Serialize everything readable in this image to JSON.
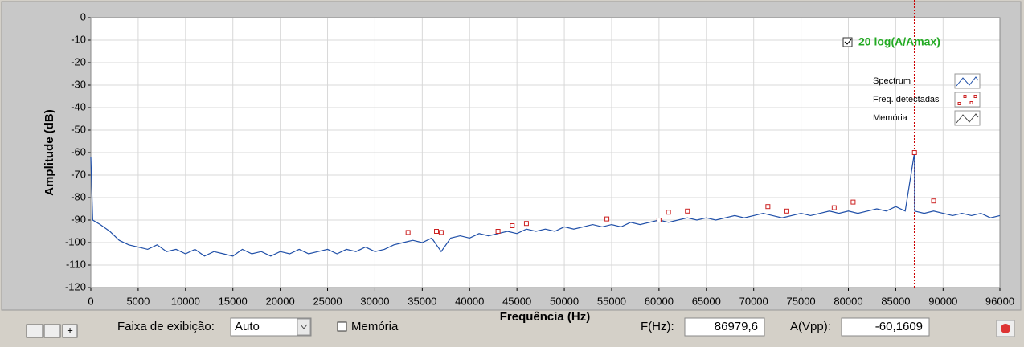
{
  "chart_data": {
    "type": "line",
    "y_label": "Amplitude (dB)",
    "x_label": "Frequência (Hz)",
    "toggle_label": "20 log(A/Amax)",
    "xlim": [
      0,
      96000
    ],
    "ylim": [
      -120,
      0
    ],
    "xticks": [
      0,
      5000,
      10000,
      15000,
      20000,
      25000,
      30000,
      35000,
      40000,
      45000,
      50000,
      55000,
      60000,
      65000,
      70000,
      75000,
      80000,
      85000,
      90000,
      96000
    ],
    "yticks": [
      0,
      -10,
      -20,
      -30,
      -40,
      -50,
      -60,
      -70,
      -80,
      -90,
      -100,
      -110,
      -120
    ],
    "grid": true,
    "series": [
      {
        "name": "Spectrum",
        "color": "#1f4fa8",
        "kind": "line",
        "x": [
          0,
          200,
          1000,
          2000,
          3000,
          4000,
          5000,
          6000,
          7000,
          8000,
          9000,
          10000,
          11000,
          12000,
          13000,
          14000,
          15000,
          16000,
          17000,
          18000,
          19000,
          20000,
          21000,
          22000,
          23000,
          24000,
          25000,
          26000,
          27000,
          28000,
          29000,
          30000,
          31000,
          32000,
          33000,
          34000,
          35000,
          36000,
          37000,
          38000,
          39000,
          40000,
          41000,
          42000,
          43000,
          44000,
          45000,
          46000,
          47000,
          48000,
          49000,
          50000,
          51000,
          52000,
          53000,
          54000,
          55000,
          56000,
          57000,
          58000,
          59000,
          60000,
          61000,
          62000,
          63000,
          64000,
          65000,
          66000,
          67000,
          68000,
          69000,
          70000,
          71000,
          72000,
          73000,
          74000,
          75000,
          76000,
          77000,
          78000,
          79000,
          80000,
          81000,
          82000,
          83000,
          84000,
          85000,
          86000,
          86980,
          87000,
          88000,
          89000,
          90000,
          91000,
          92000,
          93000,
          94000,
          95000,
          96000
        ],
        "values": [
          -62,
          -90,
          -92,
          -95,
          -99,
          -101,
          -102,
          -103,
          -101,
          -104,
          -103,
          -105,
          -103,
          -106,
          -104,
          -105,
          -106,
          -103,
          -105,
          -104,
          -106,
          -104,
          -105,
          -103,
          -105,
          -104,
          -103,
          -105,
          -103,
          -104,
          -102,
          -104,
          -103,
          -101,
          -100,
          -99,
          -100,
          -98,
          -104,
          -98,
          -97,
          -98,
          -96,
          -97,
          -96,
          -95,
          -96,
          -94,
          -95,
          -94,
          -95,
          -93,
          -94,
          -93,
          -92,
          -93,
          -92,
          -93,
          -91,
          -92,
          -91,
          -90,
          -91,
          -90,
          -89,
          -90,
          -89,
          -90,
          -89,
          -88,
          -89,
          -88,
          -87,
          -88,
          -89,
          -88,
          -87,
          -88,
          -87,
          -86,
          -87,
          -86,
          -87,
          -86,
          -85,
          -86,
          -84,
          -86,
          -60,
          -86,
          -87,
          -86,
          -87,
          -88,
          -87,
          -88,
          -87,
          -89,
          -88
        ]
      },
      {
        "name": "Freq. detectadas",
        "color": "#cc2222",
        "kind": "marker",
        "x": [
          33500,
          36500,
          37000,
          43000,
          44500,
          46000,
          54500,
          60000,
          61000,
          63000,
          71500,
          73500,
          78500,
          80500,
          86980,
          89000
        ],
        "values": [
          -95.5,
          -95,
          -95.5,
          -95,
          -92.5,
          -91.5,
          -89.5,
          -90,
          -86.5,
          -86,
          -84,
          -86,
          -84.5,
          -82,
          -60,
          -81.5
        ]
      },
      {
        "name": "Memória",
        "color": "#444444",
        "kind": "line",
        "x": [],
        "values": []
      }
    ]
  },
  "controls": {
    "range_label": "Faixa de exibição:",
    "range_value": "Auto",
    "memory_label": "Memória",
    "f_hz": {
      "label": "F(Hz):",
      "value": 86979.6,
      "value_label": "86979,6"
    },
    "a_vpp": {
      "label": "A(Vpp):",
      "value": -60.1609,
      "value_label": "-60,1609"
    }
  }
}
